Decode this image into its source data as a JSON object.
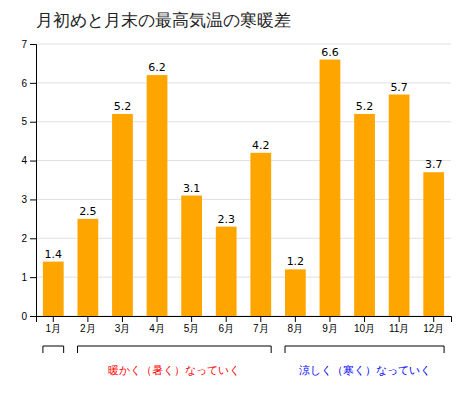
{
  "chart_data": {
    "type": "bar",
    "title": "月初めと月末の最高気温の寒暖差",
    "categories": [
      "1月",
      "2月",
      "3月",
      "4月",
      "5月",
      "6月",
      "7月",
      "8月",
      "9月",
      "10月",
      "11月",
      "12月"
    ],
    "values": [
      1.4,
      2.5,
      5.2,
      6.2,
      3.1,
      2.3,
      4.2,
      1.2,
      6.6,
      5.2,
      5.7,
      3.7
    ],
    "color": "#FFA500",
    "ylim": [
      0,
      7
    ],
    "yticks": [
      0,
      1,
      2,
      3,
      4,
      5,
      6,
      7
    ],
    "grid": true,
    "data_labels": true,
    "annotations": [
      {
        "start": "1月",
        "end": "1月"
      },
      {
        "text": "暖かく（暑く）なっていく",
        "color": "#FF0000",
        "start": "2月",
        "end": "7月"
      },
      {
        "text": "涼しく（寒く）なっていく",
        "color": "#0000FF",
        "start": "8月",
        "end": "12月"
      }
    ]
  }
}
